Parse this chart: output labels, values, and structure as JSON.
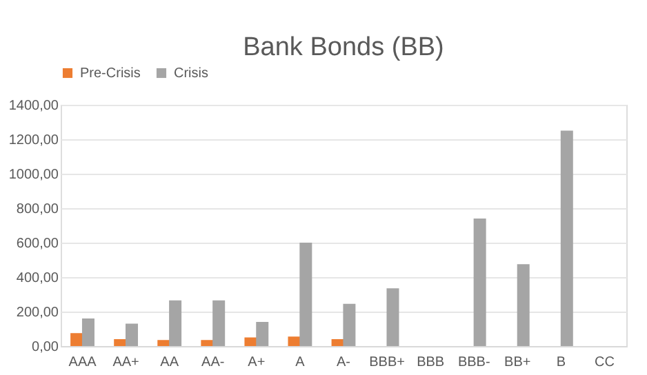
{
  "chart_data": {
    "type": "bar",
    "title": "Bank Bonds (BB)",
    "categories": [
      "AAA",
      "AA+",
      "AA",
      "AA-",
      "A+",
      "A",
      "A-",
      "BBB+",
      "BBB",
      "BBB-",
      "BB+",
      "B",
      "CC"
    ],
    "series": [
      {
        "name": "Pre-Crisis",
        "color": "#ed7d31",
        "values": [
          75,
          40,
          35,
          35,
          50,
          55,
          40,
          null,
          null,
          null,
          null,
          null,
          null
        ]
      },
      {
        "name": "Crisis",
        "color": "#a5a5a5",
        "values": [
          160,
          130,
          265,
          265,
          140,
          600,
          245,
          335,
          null,
          740,
          475,
          1250,
          null
        ]
      }
    ],
    "ylim": [
      0,
      1400
    ],
    "yticks": [
      {
        "value": 0,
        "label": "0,00"
      },
      {
        "value": 200,
        "label": "200,00"
      },
      {
        "value": 400,
        "label": "400,00"
      },
      {
        "value": 600,
        "label": "600,00"
      },
      {
        "value": 800,
        "label": "800,00"
      },
      {
        "value": 1000,
        "label": "1000,00"
      },
      {
        "value": 1200,
        "label": "1200,00"
      },
      {
        "value": 1400,
        "label": "1400,00"
      }
    ],
    "grid": "y",
    "legend": "top"
  }
}
